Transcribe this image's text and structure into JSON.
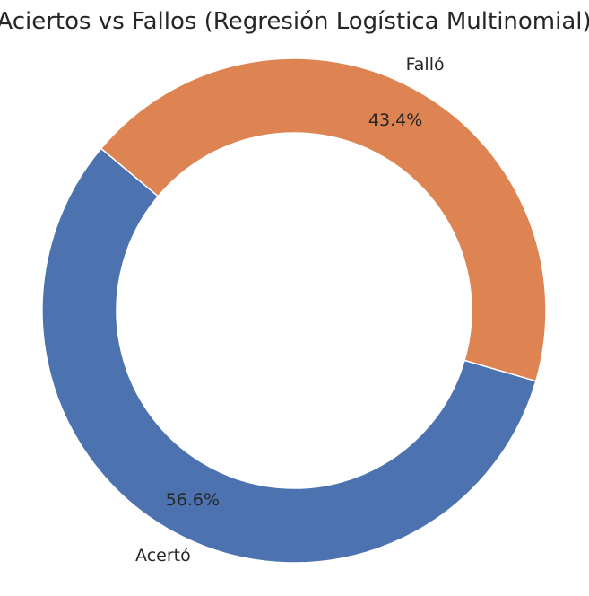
{
  "chart_data": {
    "type": "pie",
    "variant": "donut",
    "title": "Aciertos vs Fallos (Regresión Logística Multinomial)",
    "slices": [
      {
        "label": "Acertó",
        "value": 56.6,
        "percent_label": "56.6%",
        "color": "#4c72b0"
      },
      {
        "label": "Falló",
        "value": 43.4,
        "percent_label": "43.4%",
        "color": "#dd8452"
      }
    ],
    "start_angle_deg": 140,
    "direction": "counterclockwise",
    "legend": "none"
  }
}
